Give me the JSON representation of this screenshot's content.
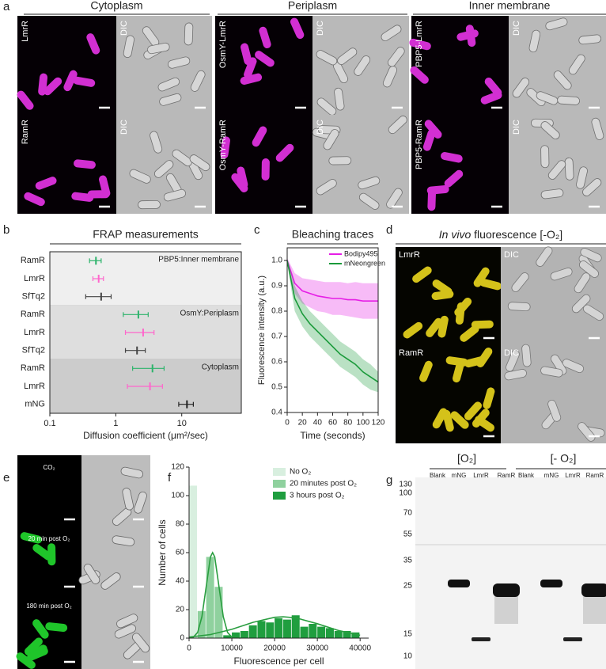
{
  "panel_a": {
    "letter": "a",
    "headers": [
      "Cytoplasm",
      "Periplasm",
      "Inner membrane"
    ],
    "image_labels": [
      [
        "LmrR",
        "DIC",
        "OsmY-LmrR",
        "DIC",
        "PBP5-LmrR",
        "DIC"
      ],
      [
        "RamR",
        "DIC",
        "OsmY-RamR",
        "DIC",
        "PBP5-RamR",
        "DIC"
      ]
    ]
  },
  "panel_d": {
    "letter": "d",
    "title_italic": "In vivo",
    "title": "fluorescence [-O₂]",
    "image_labels": [
      [
        "LmrR",
        "DIC"
      ],
      [
        "RamR",
        "DIC"
      ]
    ]
  },
  "panel_e": {
    "letter": "e",
    "image_labels": [
      "CO₂",
      "20 min post O₂",
      "180 min post O₂"
    ]
  },
  "panel_g": {
    "letter": "g",
    "conditions": [
      "[O₂]",
      "[- O₂]"
    ],
    "lanes": [
      [
        "Blank",
        "mNG",
        "LmrR",
        "RamR"
      ],
      [
        "Blank",
        "mNG",
        "LmrR",
        "RamR"
      ]
    ],
    "markers": [
      "130",
      "100",
      "70",
      "55",
      "35",
      "25",
      "15",
      "10"
    ]
  },
  "chart_data": [
    {
      "panel": "b",
      "type": "errorbar",
      "title": "FRAP measurements",
      "xlabel": "Diffusion coefficient (μm²/sec)",
      "xscale": "log",
      "xlim": [
        0.1,
        80
      ],
      "xticks": [
        0.1,
        1,
        10
      ],
      "groups": [
        {
          "name": "PBP5:Inner membrane",
          "shade": "#efefef",
          "categories": [
            "RamR",
            "LmrR",
            "SfTq2"
          ],
          "values": [
            0.5,
            0.55,
            0.6
          ],
          "errors": [
            0.1,
            0.1,
            0.25
          ],
          "colors": [
            "#2db36b",
            "#ff66cc",
            "#444444"
          ]
        },
        {
          "name": "OsmY:Periplasm",
          "shade": "#dedede",
          "categories": [
            "RamR",
            "LmrR",
            "SfTq2"
          ],
          "values": [
            2.2,
            2.6,
            2.1
          ],
          "errors": [
            0.9,
            1.2,
            0.7
          ],
          "colors": [
            "#2db36b",
            "#ff66cc",
            "#444444"
          ]
        },
        {
          "name": "Cytoplasm",
          "shade": "#cccccc",
          "categories": [
            "RamR",
            "LmrR",
            "mNG"
          ],
          "values": [
            3.6,
            3.3,
            12
          ],
          "errors": [
            1.8,
            1.8,
            3
          ],
          "colors": [
            "#2db36b",
            "#ff66cc",
            "#222222"
          ]
        }
      ]
    },
    {
      "panel": "c",
      "type": "line",
      "title": "Bleaching traces",
      "xlabel": "Time (seconds)",
      "ylabel": "Fluorescence intensity (a.u.)",
      "x": [
        0,
        10,
        20,
        30,
        40,
        50,
        60,
        70,
        80,
        90,
        100,
        110,
        120
      ],
      "xlim": [
        0,
        120
      ],
      "xticks": [
        0,
        20,
        40,
        60,
        80,
        100,
        120
      ],
      "ylim": [
        0.4,
        1.05
      ],
      "yticks": [
        0.4,
        0.5,
        0.6,
        0.7,
        0.8,
        0.9,
        {
          "value": 1,
          "label": "1.0"
        }
      ],
      "legend": "upper right",
      "series": [
        {
          "name": "Bodipy495",
          "color": "#e61ee6",
          "values": [
            1.0,
            0.91,
            0.88,
            0.87,
            0.86,
            0.855,
            0.85,
            0.85,
            0.845,
            0.845,
            0.84,
            0.84,
            0.84
          ],
          "errors": [
            0.01,
            0.04,
            0.05,
            0.055,
            0.06,
            0.06,
            0.065,
            0.065,
            0.065,
            0.07,
            0.07,
            0.07,
            0.07
          ]
        },
        {
          "name": "mNeongreen",
          "color": "#1a9a3a",
          "values": [
            1.0,
            0.85,
            0.79,
            0.75,
            0.72,
            0.69,
            0.66,
            0.63,
            0.61,
            0.59,
            0.56,
            0.54,
            0.52
          ],
          "errors": [
            0.01,
            0.05,
            0.05,
            0.05,
            0.05,
            0.05,
            0.05,
            0.05,
            0.05,
            0.05,
            0.05,
            0.05,
            0.04
          ]
        }
      ]
    },
    {
      "panel": "f",
      "type": "histogram",
      "xlabel": "Fluorescence per cell",
      "ylabel": "Number of cells",
      "xlim": [
        0,
        42000
      ],
      "xticks": [
        0,
        10000,
        20000,
        30000,
        40000
      ],
      "ylim": [
        0,
        120
      ],
      "yticks": [
        0,
        20,
        40,
        60,
        80,
        100,
        120
      ],
      "legend": "upper right",
      "series": [
        {
          "name": "No O₂",
          "color": "#d8efdf",
          "bins": [
            0,
            2000
          ],
          "values": [
            107
          ]
        },
        {
          "name": "20 minutes post O₂",
          "color": "#8fd19e",
          "bins": [
            2000,
            4000,
            6000,
            8000
          ],
          "values": [
            19,
            57,
            36
          ],
          "fit_color": "#2a9e40",
          "fit_x": [
            0,
            1000,
            2000,
            3000,
            4000,
            5000,
            5500,
            6000,
            7000,
            8000,
            9000,
            10000,
            12000
          ],
          "fit_y": [
            0,
            0.7,
            4,
            15,
            36,
            57,
            60,
            57,
            36,
            15,
            4,
            0.7,
            0
          ]
        },
        {
          "name": "3 hours post O₂",
          "color": "#1f9e3f",
          "bins": [
            8000,
            10000,
            12000,
            14000,
            16000,
            18000,
            20000,
            22000,
            24000,
            26000,
            28000,
            30000,
            32000,
            34000,
            36000,
            38000,
            40000
          ],
          "values": [
            2,
            4,
            5,
            9,
            12,
            11,
            14,
            13,
            16,
            8,
            10,
            8,
            7,
            5,
            5,
            4
          ],
          "fit_color": "#2a9e40",
          "fit_x": [
            0,
            5000,
            10000,
            15000,
            20000,
            22000,
            25000,
            30000,
            35000,
            40000
          ],
          "fit_y": [
            0.75,
            2.5,
            6.2,
            11.1,
            14.6,
            15,
            14.2,
            10.1,
            5.3,
            2
          ]
        }
      ]
    }
  ]
}
